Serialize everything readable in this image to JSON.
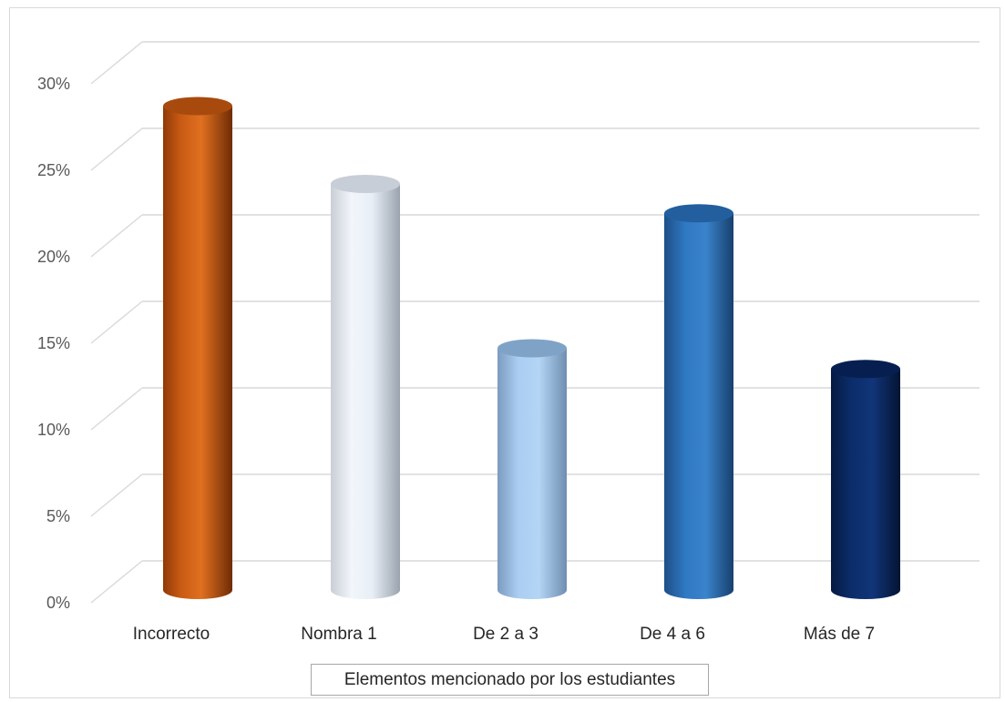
{
  "chart_data": {
    "type": "bar",
    "style": "3d-cylinder",
    "categories": [
      "Incorrecto",
      "Nombra 1",
      "De 2 a 3",
      "De 4 a 6",
      "Más de 7"
    ],
    "values": [
      27.5,
      23,
      13.5,
      21.3,
      12.3
    ],
    "unit": "%",
    "xlabel": "Elementos mencionado por los estudiantes",
    "ylabel": "",
    "ylim": [
      0,
      30
    ],
    "yticks": [
      0,
      5,
      10,
      15,
      20,
      25,
      30
    ],
    "ytick_labels": [
      "0%",
      "5%",
      "10%",
      "15%",
      "20%",
      "25%",
      "30%"
    ],
    "grid": true,
    "legend": "none",
    "bar_colors": [
      "#d15f17",
      "#ffffff",
      "#a9cdf2",
      "#2f78c2",
      "#0b2a66"
    ]
  }
}
